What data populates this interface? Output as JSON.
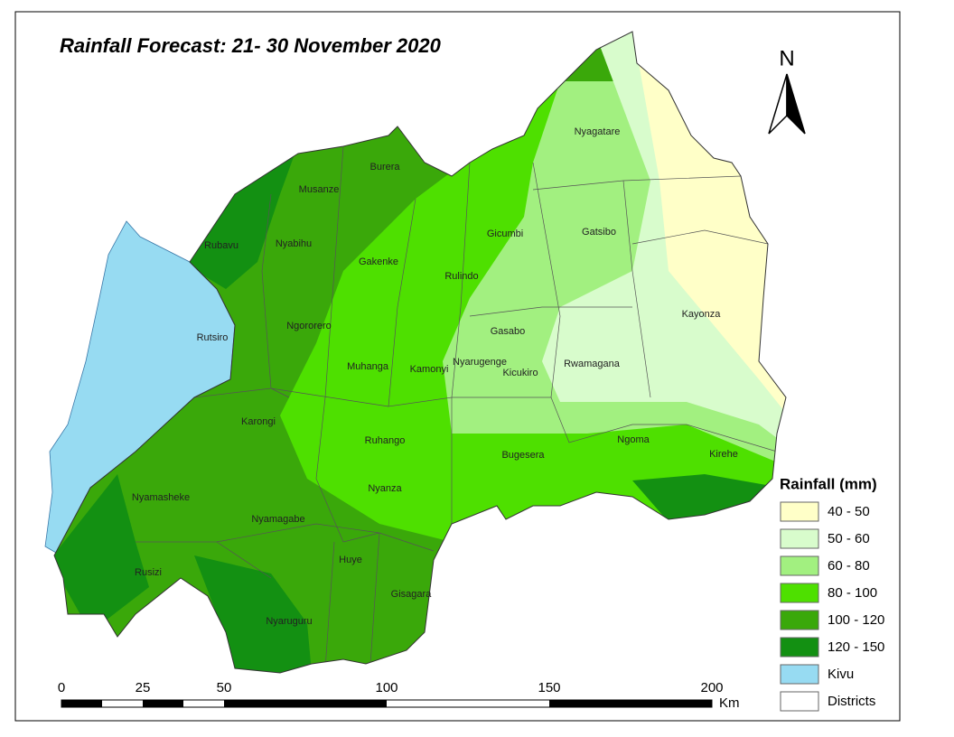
{
  "title": "Rainfall Forecast: 21- 30 November 2020",
  "north_label": "N",
  "districts": [
    "Nyagatare",
    "Burera",
    "Musanze",
    "Gatsibo",
    "Gicumbi",
    "Rubavu",
    "Nyabihu",
    "Gakenke",
    "Rulindo",
    "Kayonza",
    "Ngororero",
    "Gasabo",
    "Rutsiro",
    "Muhanga",
    "Kamonyi",
    "Nyarugenge",
    "Rwamagana",
    "Kicukiro",
    "Karongi",
    "Ruhango",
    "Ngoma",
    "Kirehe",
    "Bugesera",
    "Nyanza",
    "Nyamasheke",
    "Nyamagabe",
    "Huye",
    "Rusizi",
    "Gisagara",
    "Nyaruguru"
  ],
  "legend": {
    "title": "Rainfall (mm)",
    "items": [
      {
        "label": "40 - 50",
        "color": "#ffffc8"
      },
      {
        "label": "50 - 60",
        "color": "#d8fccc"
      },
      {
        "label": "60 - 80",
        "color": "#a2f080"
      },
      {
        "label": "80 - 100",
        "color": "#4ee000"
      },
      {
        "label": "100 - 120",
        "color": "#3aa80a"
      },
      {
        "label": "120 - 150",
        "color": "#139012"
      },
      {
        "label": "Kivu",
        "color": "#97dbf2"
      },
      {
        "label": "Districts",
        "color": "#ffffff"
      }
    ]
  },
  "scale_bar": {
    "ticks": [
      0,
      25,
      50,
      100,
      150,
      200
    ],
    "unit": "Km"
  }
}
